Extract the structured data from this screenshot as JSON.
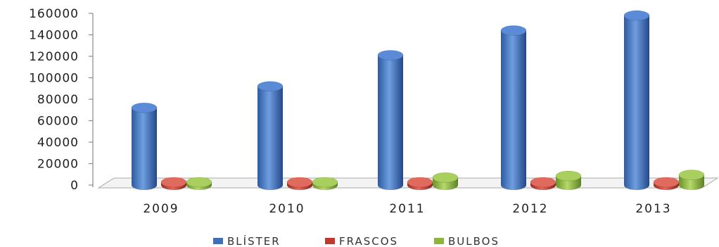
{
  "chart_data": {
    "type": "bar",
    "title": "",
    "xlabel": "",
    "ylabel": "",
    "categories": [
      "2009",
      "2010",
      "2011",
      "2012",
      "2013"
    ],
    "ylim": [
      0,
      160000
    ],
    "yticks": [
      0,
      20000,
      40000,
      60000,
      80000,
      100000,
      120000,
      140000,
      160000
    ],
    "grid": false,
    "legend_position": "bottom",
    "series": [
      {
        "name": "BLÍSTER",
        "color": "#3f6fba",
        "values": [
          72000,
          92000,
          121000,
          144000,
          158000
        ]
      },
      {
        "name": "FRASCOS",
        "color": "#c0392b",
        "values": [
          900,
          900,
          1200,
          1200,
          1200
        ]
      },
      {
        "name": "BULBOS",
        "color": "#8db43c",
        "values": [
          500,
          700,
          7000,
          8500,
          9500
        ]
      }
    ]
  }
}
